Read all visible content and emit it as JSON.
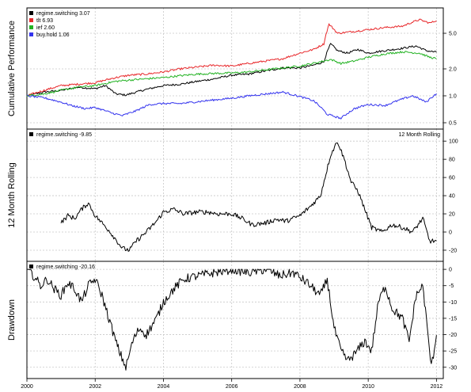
{
  "chart_data": [
    {
      "type": "line",
      "ylabel": "Cumulative Performance",
      "log_scale": true,
      "yticks": [
        0.5,
        1.0,
        2.0,
        5.0
      ],
      "ytick_labels": [
        "0.5",
        "1.0",
        "2.0",
        "5.0"
      ],
      "ylim": [
        0.48,
        8.5
      ],
      "xlim": [
        2000.0,
        2012.2
      ],
      "grid": true,
      "legend_position": "top-left",
      "series": [
        {
          "name": "regime.switching 3.07",
          "color": "#000000",
          "x": [
            2000.0,
            2000.5,
            2001.0,
            2001.5,
            2002.0,
            2002.3,
            2002.6,
            2002.9,
            2003.2,
            2003.5,
            2004.0,
            2004.5,
            2005.0,
            2005.5,
            2006.0,
            2006.5,
            2007.0,
            2007.5,
            2008.0,
            2008.4,
            2008.7,
            2008.9,
            2009.1,
            2009.4,
            2009.7,
            2010.0,
            2010.5,
            2011.0,
            2011.4,
            2011.7,
            2012.0
          ],
          "y": [
            1.0,
            1.1,
            1.15,
            1.25,
            1.2,
            1.3,
            1.05,
            1.02,
            1.1,
            1.18,
            1.3,
            1.35,
            1.45,
            1.55,
            1.7,
            1.75,
            1.9,
            2.05,
            2.05,
            2.2,
            2.4,
            3.8,
            3.2,
            3.0,
            3.3,
            3.0,
            3.2,
            3.4,
            3.6,
            3.2,
            3.07
          ]
        },
        {
          "name": "tlt 6.93",
          "color": "#e8282b",
          "x": [
            2000.0,
            2000.5,
            2001.0,
            2001.5,
            2002.0,
            2002.6,
            2003.0,
            2003.5,
            2004.0,
            2004.5,
            2005.0,
            2005.5,
            2006.0,
            2006.5,
            2007.0,
            2007.5,
            2008.0,
            2008.4,
            2008.7,
            2008.85,
            2009.1,
            2009.5,
            2010.0,
            2010.5,
            2011.0,
            2011.5,
            2011.8,
            2012.0
          ],
          "y": [
            1.0,
            1.15,
            1.3,
            1.35,
            1.4,
            1.6,
            1.7,
            1.75,
            1.85,
            2.0,
            2.1,
            2.2,
            2.15,
            2.3,
            2.45,
            2.6,
            3.0,
            3.3,
            3.8,
            6.3,
            5.0,
            5.2,
            5.5,
            5.8,
            6.0,
            7.1,
            6.5,
            6.93
          ]
        },
        {
          "name": "ief 2.60",
          "color": "#22b222",
          "x": [
            2000.0,
            2000.5,
            2001.0,
            2001.5,
            2002.0,
            2002.6,
            2003.0,
            2003.5,
            2004.0,
            2004.5,
            2005.0,
            2005.5,
            2006.0,
            2006.5,
            2007.0,
            2007.5,
            2008.0,
            2008.5,
            2008.9,
            2009.2,
            2009.6,
            2010.0,
            2010.5,
            2011.0,
            2011.5,
            2011.8,
            2012.0
          ],
          "y": [
            1.0,
            1.05,
            1.15,
            1.25,
            1.3,
            1.45,
            1.5,
            1.55,
            1.6,
            1.68,
            1.75,
            1.78,
            1.8,
            1.85,
            1.95,
            2.05,
            2.15,
            2.35,
            2.55,
            2.3,
            2.45,
            2.7,
            2.95,
            3.1,
            3.0,
            2.7,
            2.6
          ]
        },
        {
          "name": "buy.hold 1.06",
          "color": "#3333ee",
          "x": [
            2000.0,
            2000.5,
            2001.0,
            2001.3,
            2001.7,
            2002.0,
            2002.5,
            2002.8,
            2003.2,
            2003.6,
            2004.0,
            2004.5,
            2005.0,
            2005.5,
            2006.0,
            2006.5,
            2007.0,
            2007.5,
            2008.0,
            2008.4,
            2008.8,
            2009.2,
            2009.6,
            2010.0,
            2010.5,
            2011.0,
            2011.3,
            2011.7,
            2012.0
          ],
          "y": [
            1.0,
            0.95,
            0.85,
            0.78,
            0.72,
            0.74,
            0.64,
            0.6,
            0.68,
            0.8,
            0.82,
            0.82,
            0.86,
            0.9,
            0.94,
            1.0,
            1.05,
            1.1,
            0.98,
            0.88,
            0.62,
            0.56,
            0.72,
            0.8,
            0.78,
            0.92,
            1.0,
            0.85,
            1.06
          ]
        }
      ]
    },
    {
      "type": "line",
      "ylabel": "12 Month Rolling",
      "annotation": "12 Month Rolling",
      "yticks": [
        -20,
        0,
        20,
        40,
        60,
        80,
        100
      ],
      "ytick_labels": [
        "-20",
        "0",
        "20",
        "40",
        "60",
        "80",
        "100"
      ],
      "ylim": [
        -27,
        108
      ],
      "xlim": [
        2000.0,
        2012.2
      ],
      "grid": true,
      "legend_position": "top-left",
      "series": [
        {
          "name": "regime.switching -9.85",
          "color": "#000000",
          "x": [
            2001.0,
            2001.2,
            2001.4,
            2001.6,
            2001.8,
            2002.0,
            2002.2,
            2002.4,
            2002.6,
            2002.8,
            2003.0,
            2003.2,
            2003.5,
            2003.8,
            2004.0,
            2004.3,
            2004.6,
            2005.0,
            2005.3,
            2005.6,
            2006.0,
            2006.3,
            2006.6,
            2007.0,
            2007.3,
            2007.6,
            2008.0,
            2008.3,
            2008.6,
            2008.9,
            2009.1,
            2009.3,
            2009.5,
            2009.7,
            2009.9,
            2010.1,
            2010.4,
            2010.7,
            2011.0,
            2011.3,
            2011.6,
            2011.8,
            2012.0
          ],
          "y": [
            10,
            18,
            15,
            25,
            32,
            18,
            10,
            2,
            -8,
            -18,
            -20,
            -10,
            0,
            12,
            22,
            25,
            20,
            22,
            22,
            20,
            20,
            15,
            8,
            10,
            14,
            12,
            18,
            28,
            40,
            85,
            100,
            80,
            55,
            45,
            25,
            5,
            0,
            8,
            5,
            0,
            15,
            -10,
            -9.85
          ]
        }
      ]
    },
    {
      "type": "line",
      "ylabel": "Drawdown",
      "yticks": [
        -30,
        -25,
        -20,
        -15,
        -10,
        -5,
        0
      ],
      "ytick_labels": [
        "-30",
        "-25",
        "-20",
        "-15",
        "-10",
        "-5",
        "0"
      ],
      "ylim": [
        -32,
        1
      ],
      "xlim": [
        2000.0,
        2012.2
      ],
      "xticks": [
        2000,
        2002,
        2004,
        2006,
        2008,
        2010,
        2012
      ],
      "xtick_labels": [
        "2000",
        "2002",
        "2004",
        "2006",
        "2008",
        "2010",
        "2012"
      ],
      "grid": true,
      "legend_position": "top-left",
      "series": [
        {
          "name": "regime.switching -20.16",
          "color": "#000000",
          "x": [
            2000.0,
            2000.2,
            2000.4,
            2000.6,
            2000.8,
            2001.0,
            2001.2,
            2001.4,
            2001.6,
            2001.8,
            2002.0,
            2002.2,
            2002.4,
            2002.6,
            2002.7,
            2002.9,
            2003.1,
            2003.3,
            2003.5,
            2003.8,
            2004.0,
            2004.3,
            2004.6,
            2005.0,
            2005.5,
            2006.0,
            2006.5,
            2007.0,
            2007.4,
            2007.8,
            2008.2,
            2008.6,
            2008.8,
            2009.0,
            2009.2,
            2009.4,
            2009.6,
            2009.9,
            2010.1,
            2010.3,
            2010.5,
            2010.7,
            2011.0,
            2011.2,
            2011.4,
            2011.6,
            2011.7,
            2011.85,
            2012.0
          ],
          "y": [
            0,
            -2,
            -5,
            -3,
            -6,
            -8,
            -4,
            -6,
            -10,
            -5,
            -3,
            -8,
            -15,
            -22,
            -25,
            -30,
            -22,
            -18,
            -20,
            -15,
            -10,
            -6,
            -3,
            -2,
            -1,
            0,
            -1,
            0,
            -2,
            -1,
            -4,
            -8,
            -3,
            -18,
            -25,
            -28,
            -26,
            -22,
            -25,
            -10,
            -5,
            -12,
            -15,
            -22,
            -8,
            -5,
            -15,
            -30,
            -20.16
          ]
        }
      ]
    }
  ]
}
